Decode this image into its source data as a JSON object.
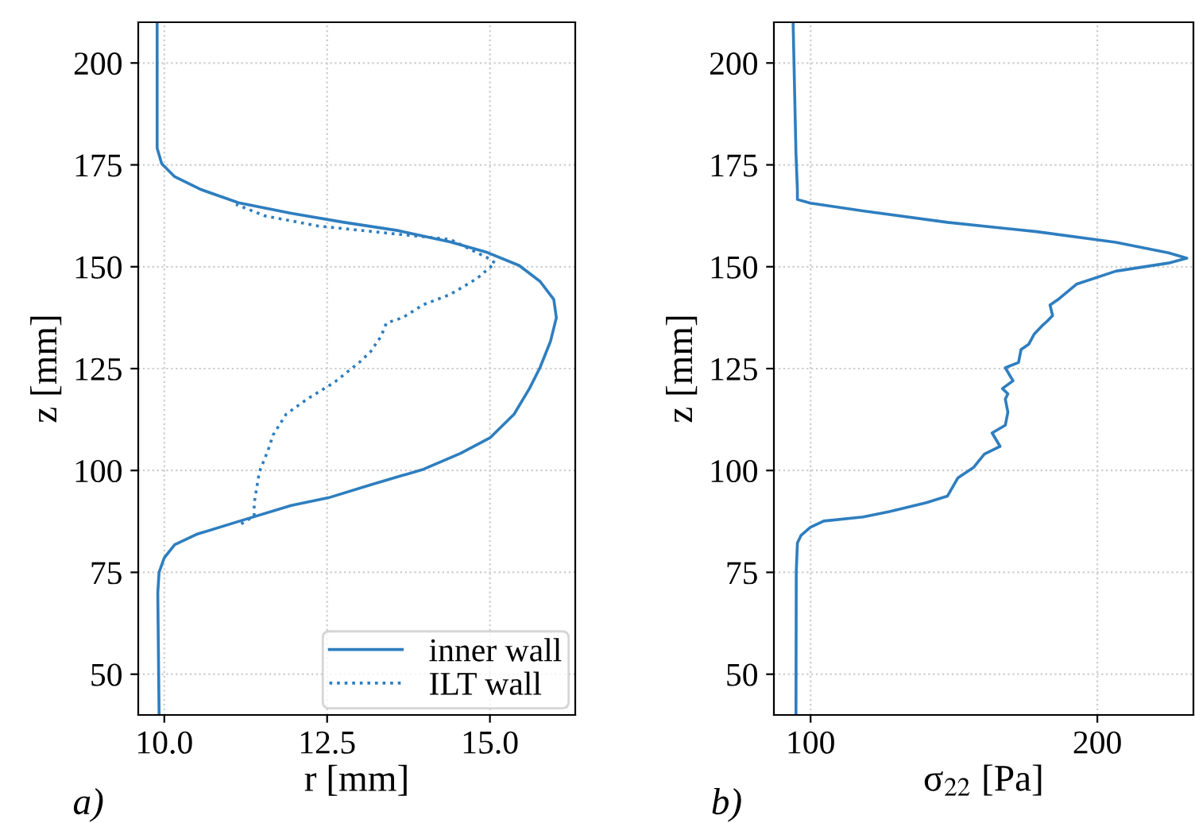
{
  "chart_data": [
    {
      "type": "line",
      "xlabel": "r [mm]",
      "ylabel": "z [mm]",
      "annotations": [
        "a)"
      ],
      "xlim": [
        9.6,
        16.31
      ],
      "ylim": [
        40,
        210
      ],
      "xticks": [
        {
          "value": 10,
          "label": "10.0"
        },
        {
          "value": 12.5,
          "label": "12.5"
        },
        {
          "value": 15,
          "label": "15.0"
        }
      ],
      "yticks": [
        50,
        75,
        100,
        125,
        150,
        175,
        200
      ],
      "grid": true,
      "legend": "bottom right",
      "marker": "none",
      "series": [
        {
          "name": "inner wall",
          "color": "#2e7ebf",
          "line_style": "solid",
          "x": [
            9.92,
            9.9,
            9.92,
            10.0,
            10.16,
            10.49,
            11.14,
            11.95,
            12.52,
            13.17,
            13.98,
            14.55,
            15.0,
            15.37,
            15.61,
            15.77,
            15.93,
            16.02,
            15.98,
            15.77,
            15.45,
            14.96,
            14.39,
            13.58,
            12.76,
            11.95,
            11.14,
            10.57,
            10.16,
            9.96,
            9.89,
            9.89
          ],
          "values": [
            40,
            70,
            75,
            78.6,
            81.8,
            84.3,
            87.5,
            91.4,
            93.3,
            96.5,
            100.3,
            104.2,
            108,
            113.8,
            120.2,
            125.3,
            131.7,
            137.5,
            142,
            146.4,
            150.3,
            153.5,
            156.1,
            158.9,
            160.9,
            163.1,
            165.7,
            168.9,
            172.1,
            175.3,
            179.1,
            210
          ]
        },
        {
          "name": "ILT wall",
          "color": "#2e7ebf",
          "line_style": "dotted",
          "x": [
            11.18,
            11.38,
            11.38,
            11.46,
            11.59,
            11.67,
            11.87,
            12.2,
            12.6,
            13.0,
            13.17,
            13.33,
            13.41,
            13.66,
            13.98,
            14.39,
            14.8,
            15.08,
            14.96,
            14.39,
            13.58,
            12.36,
            11.54,
            11.1
          ],
          "values": [
            86.9,
            88.8,
            92,
            99.7,
            104.8,
            108.7,
            113.8,
            117.6,
            121.5,
            126.6,
            129.2,
            133,
            136.2,
            137.5,
            140.7,
            143.2,
            147.1,
            150.9,
            152.2,
            156.7,
            158,
            160,
            162.5,
            165.3
          ]
        }
      ]
    },
    {
      "type": "line",
      "xlabel": "σ$_{22}$ [Pa]",
      "ylabel": "z [mm]",
      "annotations": [
        "b)"
      ],
      "xlim": [
        87.2,
        233.5
      ],
      "ylim": [
        40,
        210
      ],
      "xticks": [
        100,
        200
      ],
      "yticks": [
        50,
        75,
        100,
        125,
        150,
        175,
        200
      ],
      "grid": true,
      "legend": false,
      "marker": "none",
      "series": [
        {
          "color": "#2e7ebf",
          "line_style": "solid",
          "x": [
            94.9,
            95.0,
            95.4,
            96.7,
            100,
            104.6,
            118.3,
            127.5,
            140.4,
            147.7,
            151.4,
            156.9,
            160.6,
            166.1,
            163.3,
            167.9,
            168.8,
            167.9,
            168.8,
            166.9,
            170.6,
            167.9,
            172.5,
            173.4,
            176.1,
            178,
            180.7,
            182.6,
            184.4,
            183.5,
            186.2,
            192.7,
            206.4,
            224.8,
            231.2,
            224.8,
            206.4,
            178.9,
            147.7,
            118.3,
            100,
            95.4,
            95.4,
            94.9,
            93.9
          ],
          "values": [
            40,
            75.1,
            82.2,
            84.1,
            86.1,
            87.6,
            88.6,
            89.9,
            92.1,
            93.7,
            98.2,
            100.8,
            104,
            105.9,
            109.2,
            111.1,
            114.3,
            117.5,
            118.8,
            120.1,
            122,
            125.2,
            126.5,
            129.7,
            131,
            133.5,
            135.5,
            136.7,
            138,
            140.6,
            141.9,
            145.7,
            148.9,
            150.9,
            152.1,
            153.4,
            156,
            158.6,
            160.9,
            163.7,
            165.6,
            166.5,
            168.8,
            177.8,
            210
          ]
        }
      ]
    }
  ]
}
